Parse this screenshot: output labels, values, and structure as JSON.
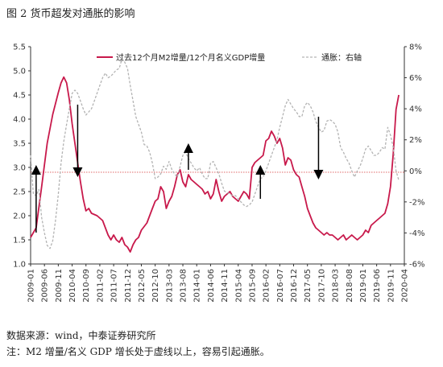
{
  "title": "图 2  货币超发对通胀的影响",
  "source": "数据来源：wind，中泰证券研究所",
  "note": "注：M2 增量/名义 GDP 增长处于虚线以上，容易引起通胀。",
  "chart_data": {
    "type": "line",
    "x_labels": [
      "2009-01",
      "2009-06",
      "2009-11",
      "2010-04",
      "2010-09",
      "2011-02",
      "2011-07",
      "2011-12",
      "2012-05",
      "2012-10",
      "2013-03",
      "2013-08",
      "2014-01",
      "2014-06",
      "2014-11",
      "2015-04",
      "2015-09",
      "2016-02",
      "2016-07",
      "2016-12",
      "2017-05",
      "2017-10",
      "2018-03",
      "2018-08",
      "2019-01",
      "2019-06",
      "2019-11",
      "2020-04"
    ],
    "y_left": {
      "min": 1.0,
      "max": 5.5,
      "ticks": [
        "1.0",
        "1.5",
        "2.0",
        "2.5",
        "3.0",
        "3.5",
        "4.0",
        "4.5",
        "5.0",
        "5.5"
      ]
    },
    "y_right": {
      "min": -6,
      "max": 8,
      "ticks": [
        "-6%",
        "-4%",
        "-2%",
        "0%",
        "2%",
        "4%",
        "6%",
        "8%"
      ]
    },
    "reference_line": {
      "axis": "left",
      "y": 2.9,
      "color": "#e06a6a"
    },
    "series": [
      {
        "name": "过去12个月M2增量/12个月名义GDP增量",
        "axis": "left",
        "color": "#c8194b",
        "style": "solid",
        "points": [
          [
            0,
            1.55
          ],
          [
            2,
            1.75
          ],
          [
            4,
            2.6
          ],
          [
            6,
            3.5
          ],
          [
            8,
            4.1
          ],
          [
            10,
            4.55
          ],
          [
            11,
            4.75
          ],
          [
            12,
            4.87
          ],
          [
            13,
            4.75
          ],
          [
            14,
            4.4
          ],
          [
            15,
            3.9
          ],
          [
            17,
            3.1
          ],
          [
            18,
            2.7
          ],
          [
            19,
            2.35
          ],
          [
            20,
            2.1
          ],
          [
            21,
            2.15
          ],
          [
            22,
            2.05
          ],
          [
            24,
            2.0
          ],
          [
            26,
            1.9
          ],
          [
            27,
            1.75
          ],
          [
            28,
            1.6
          ],
          [
            29,
            1.5
          ],
          [
            30,
            1.6
          ],
          [
            31,
            1.5
          ],
          [
            32,
            1.45
          ],
          [
            33,
            1.55
          ],
          [
            34,
            1.4
          ],
          [
            35,
            1.35
          ],
          [
            36,
            1.25
          ],
          [
            37,
            1.4
          ],
          [
            38,
            1.5
          ],
          [
            39,
            1.55
          ],
          [
            40,
            1.7
          ],
          [
            42,
            1.85
          ],
          [
            43,
            2.0
          ],
          [
            44,
            2.15
          ],
          [
            45,
            2.3
          ],
          [
            46,
            2.35
          ],
          [
            47,
            2.6
          ],
          [
            48,
            2.5
          ],
          [
            49,
            2.15
          ],
          [
            50,
            2.3
          ],
          [
            51,
            2.4
          ],
          [
            52,
            2.6
          ],
          [
            53,
            2.85
          ],
          [
            54,
            2.95
          ],
          [
            55,
            2.7
          ],
          [
            56,
            2.6
          ],
          [
            57,
            2.85
          ],
          [
            58,
            2.75
          ],
          [
            59,
            2.7
          ],
          [
            60,
            2.65
          ],
          [
            61,
            2.6
          ],
          [
            62,
            2.55
          ],
          [
            63,
            2.45
          ],
          [
            64,
            2.5
          ],
          [
            65,
            2.35
          ],
          [
            66,
            2.45
          ],
          [
            67,
            2.75
          ],
          [
            68,
            2.5
          ],
          [
            69,
            2.3
          ],
          [
            70,
            2.4
          ],
          [
            71,
            2.45
          ],
          [
            72,
            2.5
          ],
          [
            73,
            2.4
          ],
          [
            74,
            2.35
          ],
          [
            75,
            2.3
          ],
          [
            76,
            2.4
          ],
          [
            77,
            2.5
          ],
          [
            78,
            2.45
          ],
          [
            79,
            2.35
          ],
          [
            80,
            3.0
          ],
          [
            81,
            3.1
          ],
          [
            82,
            3.15
          ],
          [
            83,
            3.2
          ],
          [
            84,
            3.25
          ],
          [
            85,
            3.55
          ],
          [
            86,
            3.6
          ],
          [
            87,
            3.75
          ],
          [
            88,
            3.65
          ],
          [
            89,
            3.5
          ],
          [
            90,
            3.6
          ],
          [
            91,
            3.4
          ],
          [
            92,
            3.05
          ],
          [
            93,
            3.2
          ],
          [
            94,
            3.15
          ],
          [
            95,
            2.95
          ],
          [
            96,
            2.85
          ],
          [
            97,
            2.8
          ],
          [
            98,
            2.6
          ],
          [
            99,
            2.4
          ],
          [
            100,
            2.15
          ],
          [
            101,
            2.0
          ],
          [
            102,
            1.85
          ],
          [
            103,
            1.75
          ],
          [
            104,
            1.7
          ],
          [
            105,
            1.65
          ],
          [
            106,
            1.6
          ],
          [
            107,
            1.65
          ],
          [
            108,
            1.6
          ],
          [
            109,
            1.6
          ],
          [
            110,
            1.55
          ],
          [
            111,
            1.5
          ],
          [
            112,
            1.55
          ],
          [
            113,
            1.6
          ],
          [
            114,
            1.5
          ],
          [
            115,
            1.55
          ],
          [
            116,
            1.6
          ],
          [
            117,
            1.55
          ],
          [
            118,
            1.5
          ],
          [
            119,
            1.55
          ],
          [
            120,
            1.6
          ],
          [
            121,
            1.7
          ],
          [
            122,
            1.65
          ],
          [
            123,
            1.8
          ],
          [
            124,
            1.85
          ],
          [
            125,
            1.9
          ],
          [
            126,
            1.95
          ],
          [
            127,
            2.0
          ],
          [
            128,
            2.05
          ],
          [
            129,
            2.25
          ],
          [
            130,
            2.6
          ],
          [
            131,
            3.3
          ],
          [
            132,
            4.2
          ],
          [
            133,
            4.5
          ]
        ]
      },
      {
        "name": "通胀：右轴",
        "axis": "right",
        "color": "#b3b3b3",
        "style": "dashed",
        "points": [
          [
            0,
            1.0
          ],
          [
            1,
            -1.5
          ],
          [
            2,
            -1.6
          ],
          [
            3,
            -1.2
          ],
          [
            4,
            -3.0
          ],
          [
            5,
            -4.0
          ],
          [
            6,
            -4.8
          ],
          [
            7,
            -5.0
          ],
          [
            8,
            -4.5
          ],
          [
            9,
            -3.2
          ],
          [
            10,
            -1.5
          ],
          [
            11,
            0.5
          ],
          [
            12,
            1.9
          ],
          [
            13,
            3.0
          ],
          [
            14,
            4.0
          ],
          [
            15,
            5.0
          ],
          [
            16,
            5.2
          ],
          [
            17,
            5.0
          ],
          [
            18,
            4.5
          ],
          [
            19,
            4.0
          ],
          [
            20,
            3.6
          ],
          [
            21,
            3.8
          ],
          [
            22,
            4.0
          ],
          [
            23,
            4.5
          ],
          [
            24,
            5.0
          ],
          [
            25,
            5.5
          ],
          [
            26,
            6.0
          ],
          [
            27,
            6.3
          ],
          [
            28,
            6.0
          ],
          [
            29,
            6.1
          ],
          [
            30,
            6.3
          ],
          [
            31,
            6.5
          ],
          [
            32,
            6.6
          ],
          [
            33,
            7.2
          ],
          [
            34,
            7.0
          ],
          [
            35,
            6.6
          ],
          [
            36,
            5.5
          ],
          [
            37,
            4.5
          ],
          [
            38,
            3.5
          ],
          [
            39,
            3.0
          ],
          [
            40,
            2.5
          ],
          [
            41,
            1.7
          ],
          [
            42,
            1.6
          ],
          [
            43,
            1.2
          ],
          [
            44,
            0.5
          ],
          [
            45,
            -0.5
          ],
          [
            46,
            -0.4
          ],
          [
            47,
            -0.2
          ],
          [
            48,
            0.3
          ],
          [
            49,
            0.1
          ],
          [
            50,
            0.6
          ],
          [
            51,
            0.1
          ],
          [
            52,
            -0.2
          ],
          [
            53,
            -0.4
          ],
          [
            54,
            0.3
          ],
          [
            55,
            1.0
          ],
          [
            56,
            1.2
          ],
          [
            57,
            0.8
          ],
          [
            58,
            0.5
          ],
          [
            59,
            0.2
          ],
          [
            60,
            0.0
          ],
          [
            61,
            0.2
          ],
          [
            62,
            -0.2
          ],
          [
            63,
            -0.5
          ],
          [
            64,
            -0.5
          ],
          [
            65,
            0.5
          ],
          [
            66,
            0.6
          ],
          [
            67,
            0.2
          ],
          [
            68,
            -0.2
          ],
          [
            69,
            -0.8
          ],
          [
            70,
            -1.3
          ],
          [
            71,
            -1.4
          ],
          [
            72,
            -1.5
          ],
          [
            73,
            -1.6
          ],
          [
            74,
            -1.6
          ],
          [
            75,
            -1.8
          ],
          [
            76,
            -2.0
          ],
          [
            77,
            -2.2
          ],
          [
            78,
            -2.3
          ],
          [
            79,
            -2.2
          ],
          [
            80,
            -2.0
          ],
          [
            81,
            -1.5
          ],
          [
            82,
            -1.0
          ],
          [
            83,
            -0.5
          ],
          [
            84,
            -0.4
          ],
          [
            85,
            0.0
          ],
          [
            86,
            0.5
          ],
          [
            87,
            1.0
          ],
          [
            88,
            1.5
          ],
          [
            89,
            2.0
          ],
          [
            90,
            2.8
          ],
          [
            91,
            3.5
          ],
          [
            92,
            4.2
          ],
          [
            93,
            4.6
          ],
          [
            94,
            4.3
          ],
          [
            95,
            4.0
          ],
          [
            96,
            3.8
          ],
          [
            97,
            3.5
          ],
          [
            98,
            3.5
          ],
          [
            99,
            4.2
          ],
          [
            100,
            4.4
          ],
          [
            101,
            4.2
          ],
          [
            102,
            3.8
          ],
          [
            103,
            3.2
          ],
          [
            104,
            2.8
          ],
          [
            105,
            2.5
          ],
          [
            106,
            2.6
          ],
          [
            107,
            3.2
          ],
          [
            108,
            3.3
          ],
          [
            109,
            3.2
          ],
          [
            110,
            3.0
          ],
          [
            111,
            2.5
          ],
          [
            112,
            1.5
          ],
          [
            113,
            1.2
          ],
          [
            114,
            0.8
          ],
          [
            115,
            0.5
          ],
          [
            116,
            0.0
          ],
          [
            117,
            -0.4
          ],
          [
            118,
            0.0
          ],
          [
            119,
            0.3
          ],
          [
            120,
            0.8
          ],
          [
            121,
            1.4
          ],
          [
            122,
            1.6
          ],
          [
            123,
            1.3
          ],
          [
            124,
            1.0
          ],
          [
            125,
            1.0
          ],
          [
            126,
            1.2
          ],
          [
            127,
            1.5
          ],
          [
            128,
            1.4
          ],
          [
            129,
            2.8
          ],
          [
            130,
            2.3
          ],
          [
            131,
            1.5
          ],
          [
            132,
            0.0
          ],
          [
            133,
            -0.6
          ]
        ]
      }
    ],
    "arrows": [
      {
        "x": 2,
        "y_from": 1.65,
        "y_to": 2.95,
        "direction": "up"
      },
      {
        "x": 17,
        "y_from": 4.3,
        "y_to": 2.9,
        "direction": "down"
      },
      {
        "x": 57,
        "y_from": 2.95,
        "y_to": 3.4,
        "direction": "up"
      },
      {
        "x": 83,
        "y_from": 2.35,
        "y_to": 2.95,
        "direction": "up"
      },
      {
        "x": 104,
        "y_from": 4.05,
        "y_to": 2.85,
        "direction": "down"
      }
    ],
    "legend": {
      "placement": "top"
    },
    "grid": false
  }
}
